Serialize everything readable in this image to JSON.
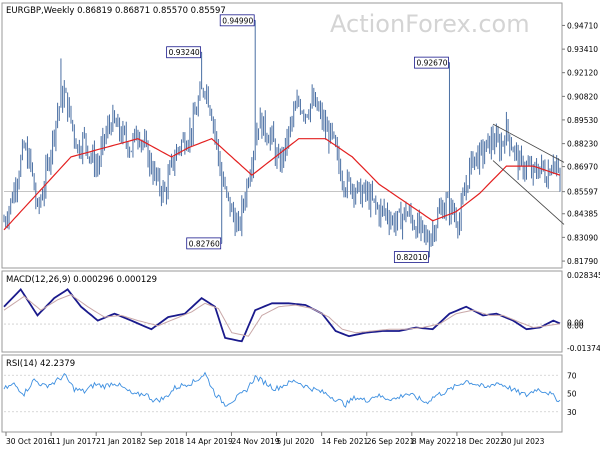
{
  "watermark": "ActionForex.com",
  "colors": {
    "candle": "#4a6fa3",
    "ma": "#e32020",
    "macd": "#1a1a8c",
    "signal": "#c9a8a8",
    "rsi": "#3d8fe0",
    "trend": "#444444",
    "label_border": "#1a1a8c",
    "panel_border": "#9a9a9a"
  },
  "chart_data": [
    {
      "type": "candlestick",
      "title": "EURGBP,Weekly  0.86819 0.86871 0.85570 0.85597",
      "ylim": [
        0.8152,
        0.9583
      ],
      "y_ticks": [
        "0.94710",
        "0.93410",
        "0.92120",
        "0.90820",
        "0.89530",
        "0.88230",
        "0.86970",
        "0.85597",
        "0.84385",
        "0.83090",
        "0.81790"
      ],
      "current_price": "0.85597",
      "annotations": [
        {
          "text": "0.93240",
          "value": 0.9324
        },
        {
          "text": "0.94990",
          "value": 0.9499
        },
        {
          "text": "0.82760",
          "value": 0.8276
        },
        {
          "text": "0.92670",
          "value": 0.9267
        },
        {
          "text": "0.82010",
          "value": 0.8201
        }
      ],
      "price_path": [
        [
          0,
          0.84
        ],
        [
          4,
          0.85
        ],
        [
          8,
          0.865
        ],
        [
          12,
          0.88
        ],
        [
          16,
          0.87
        ],
        [
          20,
          0.845
        ],
        [
          24,
          0.86
        ],
        [
          28,
          0.88
        ],
        [
          32,
          0.9
        ],
        [
          36,
          0.91
        ],
        [
          40,
          0.895
        ],
        [
          44,
          0.88
        ],
        [
          48,
          0.885
        ],
        [
          52,
          0.875
        ],
        [
          56,
          0.87
        ],
        [
          60,
          0.885
        ],
        [
          64,
          0.895
        ],
        [
          68,
          0.89
        ],
        [
          72,
          0.885
        ],
        [
          76,
          0.88
        ],
        [
          80,
          0.89
        ],
        [
          84,
          0.88
        ],
        [
          88,
          0.87
        ],
        [
          92,
          0.86
        ],
        [
          96,
          0.855
        ],
        [
          100,
          0.87
        ],
        [
          104,
          0.88
        ],
        [
          108,
          0.885
        ],
        [
          112,
          0.89
        ],
        [
          116,
          0.905
        ],
        [
          120,
          0.915
        ],
        [
          124,
          0.9
        ],
        [
          128,
          0.875
        ],
        [
          132,
          0.855
        ],
        [
          136,
          0.845
        ],
        [
          140,
          0.835
        ],
        [
          144,
          0.855
        ],
        [
          148,
          0.875
        ],
        [
          152,
          0.895
        ],
        [
          156,
          0.89
        ],
        [
          160,
          0.885
        ],
        [
          164,
          0.87
        ],
        [
          168,
          0.88
        ],
        [
          172,
          0.895
        ],
        [
          176,
          0.905
        ],
        [
          180,
          0.9
        ],
        [
          184,
          0.905
        ],
        [
          188,
          0.9
        ],
        [
          192,
          0.89
        ],
        [
          196,
          0.885
        ],
        [
          200,
          0.87
        ],
        [
          204,
          0.86
        ],
        [
          208,
          0.86
        ],
        [
          212,
          0.855
        ],
        [
          216,
          0.855
        ],
        [
          220,
          0.85
        ],
        [
          224,
          0.845
        ],
        [
          228,
          0.845
        ],
        [
          232,
          0.84
        ],
        [
          236,
          0.84
        ],
        [
          240,
          0.845
        ],
        [
          244,
          0.84
        ],
        [
          248,
          0.835
        ],
        [
          252,
          0.83
        ],
        [
          256,
          0.835
        ],
        [
          260,
          0.845
        ],
        [
          264,
          0.85
        ],
        [
          268,
          0.845
        ],
        [
          272,
          0.84
        ],
        [
          276,
          0.86
        ],
        [
          280,
          0.875
        ],
        [
          284,
          0.875
        ],
        [
          288,
          0.88
        ],
        [
          292,
          0.885
        ],
        [
          296,
          0.88
        ],
        [
          300,
          0.89
        ],
        [
          304,
          0.88
        ],
        [
          308,
          0.87
        ],
        [
          312,
          0.87
        ],
        [
          316,
          0.865
        ],
        [
          320,
          0.87
        ],
        [
          324,
          0.865
        ],
        [
          328,
          0.875
        ],
        [
          332,
          0.86
        ]
      ],
      "ma_path": [
        [
          0,
          0.835
        ],
        [
          20,
          0.855
        ],
        [
          40,
          0.875
        ],
        [
          60,
          0.88
        ],
        [
          80,
          0.885
        ],
        [
          100,
          0.875
        ],
        [
          110,
          0.88
        ],
        [
          124,
          0.885
        ],
        [
          136,
          0.875
        ],
        [
          148,
          0.865
        ],
        [
          162,
          0.875
        ],
        [
          176,
          0.885
        ],
        [
          192,
          0.885
        ],
        [
          208,
          0.875
        ],
        [
          224,
          0.86
        ],
        [
          240,
          0.85
        ],
        [
          256,
          0.84
        ],
        [
          270,
          0.845
        ],
        [
          284,
          0.855
        ],
        [
          300,
          0.87
        ],
        [
          316,
          0.87
        ],
        [
          332,
          0.865
        ]
      ],
      "channel_upper": [
        [
          292,
          0.893
        ],
        [
          332,
          0.872
        ]
      ],
      "channel_lower": [
        [
          292,
          0.873
        ],
        [
          332,
          0.838
        ]
      ],
      "extra_candles": [
        {
          "index": 34,
          "high": 0.929
        },
        {
          "index": 118,
          "high": 0.9324
        },
        {
          "index": 130,
          "low": 0.8276
        },
        {
          "index": 150,
          "high": 0.9499
        },
        {
          "index": 254,
          "low": 0.8201
        },
        {
          "index": 266,
          "high": 0.9267
        }
      ],
      "total_bars": 333
    },
    {
      "type": "line",
      "title": "MACD(12,26,9) 0.000296 0.000129",
      "ylim": [
        -0.015,
        0.0295
      ],
      "y_ticks": [
        "0.028345",
        "0.00",
        "0.00",
        "-0.013748"
      ],
      "zero_line": 0,
      "series": [
        {
          "role": "main",
          "values": [
            [
              0,
              0.01
            ],
            [
              10,
              0.02
            ],
            [
              20,
              0.005
            ],
            [
              30,
              0.015
            ],
            [
              38,
              0.02
            ],
            [
              46,
              0.01
            ],
            [
              56,
              0.002
            ],
            [
              66,
              0.006
            ],
            [
              76,
              0.002
            ],
            [
              88,
              -0.003
            ],
            [
              98,
              0.004
            ],
            [
              108,
              0.006
            ],
            [
              118,
              0.015
            ],
            [
              126,
              0.01
            ],
            [
              132,
              -0.008
            ],
            [
              142,
              -0.01
            ],
            [
              150,
              0.008
            ],
            [
              160,
              0.012
            ],
            [
              170,
              0.012
            ],
            [
              180,
              0.011
            ],
            [
              190,
              0.006
            ],
            [
              198,
              -0.004
            ],
            [
              206,
              -0.007
            ],
            [
              216,
              -0.005
            ],
            [
              226,
              -0.004
            ],
            [
              236,
              -0.004
            ],
            [
              246,
              -0.002
            ],
            [
              256,
              -0.003
            ],
            [
              266,
              0.006
            ],
            [
              276,
              0.01
            ],
            [
              286,
              0.005
            ],
            [
              294,
              0.006
            ],
            [
              304,
              0.002
            ],
            [
              312,
              -0.003
            ],
            [
              320,
              -0.002
            ],
            [
              328,
              0.002
            ],
            [
              332,
              0.0003
            ]
          ]
        },
        {
          "role": "signal",
          "values": [
            [
              0,
              0.008
            ],
            [
              12,
              0.016
            ],
            [
              22,
              0.008
            ],
            [
              32,
              0.014
            ],
            [
              40,
              0.017
            ],
            [
              50,
              0.01
            ],
            [
              60,
              0.004
            ],
            [
              70,
              0.005
            ],
            [
              80,
              0.002
            ],
            [
              92,
              -0.001
            ],
            [
              102,
              0.003
            ],
            [
              112,
              0.007
            ],
            [
              120,
              0.012
            ],
            [
              128,
              0.009
            ],
            [
              136,
              -0.005
            ],
            [
              146,
              -0.007
            ],
            [
              154,
              0.005
            ],
            [
              164,
              0.01
            ],
            [
              174,
              0.011
            ],
            [
              184,
              0.009
            ],
            [
              194,
              0.004
            ],
            [
              202,
              -0.003
            ],
            [
              210,
              -0.005
            ],
            [
              220,
              -0.004
            ],
            [
              230,
              -0.003
            ],
            [
              240,
              -0.003
            ],
            [
              250,
              -0.002
            ],
            [
              260,
              0.0
            ],
            [
              270,
              0.006
            ],
            [
              280,
              0.008
            ],
            [
              290,
              0.005
            ],
            [
              298,
              0.005
            ],
            [
              308,
              0.001
            ],
            [
              316,
              -0.002
            ],
            [
              324,
              -0.001
            ],
            [
              332,
              0.0001
            ]
          ]
        }
      ]
    },
    {
      "type": "line",
      "title": "RSI(14) 42.2379",
      "ylim": [
        10,
        90
      ],
      "y_ticks": [
        "70",
        "50",
        "30"
      ],
      "levels": [
        70,
        30
      ],
      "series": [
        {
          "role": "rsi",
          "values": [
            [
              0,
              55
            ],
            [
              6,
              60
            ],
            [
              12,
              50
            ],
            [
              18,
              65
            ],
            [
              24,
              58
            ],
            [
              30,
              62
            ],
            [
              36,
              70
            ],
            [
              42,
              55
            ],
            [
              48,
              52
            ],
            [
              54,
              60
            ],
            [
              60,
              58
            ],
            [
              66,
              62
            ],
            [
              72,
              55
            ],
            [
              78,
              48
            ],
            [
              84,
              50
            ],
            [
              90,
              42
            ],
            [
              96,
              45
            ],
            [
              102,
              56
            ],
            [
              108,
              60
            ],
            [
              114,
              63
            ],
            [
              120,
              72
            ],
            [
              126,
              50
            ],
            [
              132,
              38
            ],
            [
              138,
              44
            ],
            [
              144,
              52
            ],
            [
              150,
              68
            ],
            [
              156,
              62
            ],
            [
              162,
              55
            ],
            [
              168,
              60
            ],
            [
              174,
              64
            ],
            [
              180,
              58
            ],
            [
              186,
              54
            ],
            [
              192,
              50
            ],
            [
              198,
              44
            ],
            [
              204,
              38
            ],
            [
              210,
              46
            ],
            [
              216,
              42
            ],
            [
              222,
              48
            ],
            [
              228,
              45
            ],
            [
              234,
              44
            ],
            [
              240,
              50
            ],
            [
              246,
              46
            ],
            [
              252,
              40
            ],
            [
              258,
              48
            ],
            [
              264,
              52
            ],
            [
              270,
              58
            ],
            [
              276,
              64
            ],
            [
              282,
              60
            ],
            [
              288,
              56
            ],
            [
              294,
              62
            ],
            [
              300,
              58
            ],
            [
              306,
              52
            ],
            [
              312,
              48
            ],
            [
              318,
              55
            ],
            [
              324,
              52
            ],
            [
              332,
              42
            ]
          ]
        }
      ]
    }
  ],
  "x_axis": {
    "labels": [
      "30 Oct 2016",
      "11 Jun 2017",
      "21 Jan 2018",
      "2 Sep 2018",
      "14 Apr 2019",
      "24 Nov 2019",
      "5 Jul 2020",
      "14 Feb 2021",
      "26 Sep 2021",
      "8 May 2022",
      "18 Dec 2022",
      "30 Jul 2023"
    ]
  }
}
